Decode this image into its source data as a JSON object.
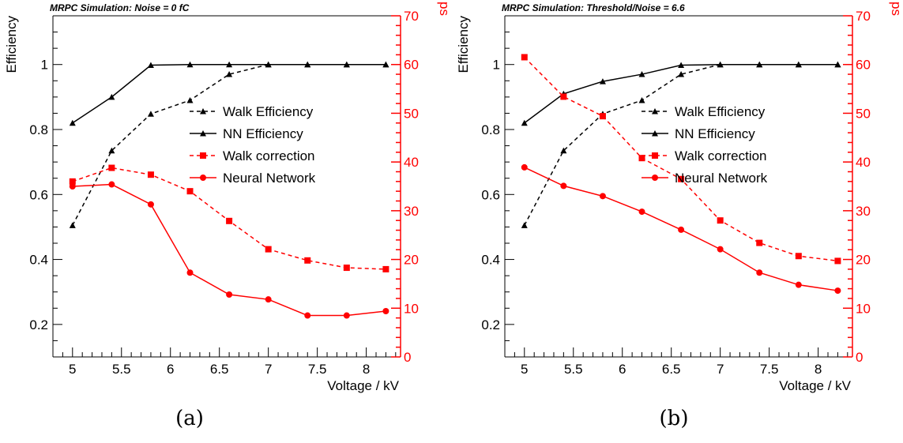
{
  "colors": {
    "walk": "#ff0000",
    "nn": "#000000",
    "axis_right": "#ff0000",
    "axis_left": "#000000"
  },
  "captions": [
    "(a)",
    "(b)"
  ],
  "chart_data": [
    {
      "type": "line",
      "title": "MRPC Simulation: Noise = 0 fC",
      "xlabel": "Voltage / kV",
      "ylabel": "Efficiency",
      "y2label": "MRPC Time Resolution / ps",
      "xlim": [
        4.8,
        8.35
      ],
      "ylim": [
        0.1,
        1.15
      ],
      "y2lim": [
        0,
        70
      ],
      "xticks": [
        "5",
        "5.5",
        "6",
        "6.5",
        "7",
        "7.5",
        "8"
      ],
      "yticks": [
        "0.2",
        "0.4",
        "0.6",
        "0.8",
        "1"
      ],
      "y2ticks": [
        "0",
        "10",
        "20",
        "30",
        "40",
        "50",
        "60",
        "70"
      ],
      "legend_position": "center-right",
      "x": [
        5.0,
        5.4,
        5.8,
        6.2,
        6.6,
        7.0,
        7.4,
        7.8,
        8.2
      ],
      "series": [
        {
          "name": "Walk Efficiency",
          "axis": "left",
          "color": "#000000",
          "dash": true,
          "marker": "triangle",
          "values": [
            0.505,
            0.735,
            0.848,
            0.89,
            0.97,
            1.0,
            1.0,
            1.0,
            1.0
          ]
        },
        {
          "name": "NN Efficiency",
          "axis": "left",
          "color": "#000000",
          "dash": false,
          "marker": "triangle",
          "values": [
            0.82,
            0.9,
            0.998,
            1.0,
            1.0,
            1.0,
            1.0,
            1.0,
            1.0
          ]
        },
        {
          "name": "Walk correction",
          "axis": "right",
          "color": "#ff0000",
          "dash": true,
          "marker": "square",
          "values": [
            36.0,
            38.8,
            37.4,
            34.0,
            27.9,
            22.1,
            19.8,
            18.3,
            18.0
          ]
        },
        {
          "name": "Neural Network",
          "axis": "right",
          "color": "#ff0000",
          "dash": false,
          "marker": "circle",
          "values": [
            35.0,
            35.4,
            31.3,
            17.3,
            12.8,
            11.8,
            8.5,
            8.5,
            9.4
          ]
        }
      ]
    },
    {
      "type": "line",
      "title": "MRPC Simulation: Threshold/Noise = 6.6",
      "xlabel": "Voltage / kV",
      "ylabel": "Efficiency",
      "y2label": "MRPC Time Resolution / ps",
      "xlim": [
        4.8,
        8.35
      ],
      "ylim": [
        0.1,
        1.15
      ],
      "y2lim": [
        0,
        70
      ],
      "xticks": [
        "5",
        "5.5",
        "6",
        "6.5",
        "7",
        "7.5",
        "8"
      ],
      "yticks": [
        "0.2",
        "0.4",
        "0.6",
        "0.8",
        "1"
      ],
      "y2ticks": [
        "0",
        "10",
        "20",
        "30",
        "40",
        "50",
        "60",
        "70"
      ],
      "legend_position": "center-right",
      "x": [
        5.0,
        5.4,
        5.8,
        6.2,
        6.6,
        7.0,
        7.4,
        7.8,
        8.2
      ],
      "series": [
        {
          "name": "Walk Efficiency",
          "axis": "left",
          "color": "#000000",
          "dash": true,
          "marker": "triangle",
          "values": [
            0.505,
            0.735,
            0.848,
            0.89,
            0.97,
            1.0,
            1.0,
            1.0,
            1.0
          ]
        },
        {
          "name": "NN Efficiency",
          "axis": "left",
          "color": "#000000",
          "dash": false,
          "marker": "triangle",
          "values": [
            0.82,
            0.91,
            0.948,
            0.97,
            0.998,
            1.0,
            1.0,
            1.0,
            1.0
          ]
        },
        {
          "name": "Walk correction",
          "axis": "right",
          "color": "#ff0000",
          "dash": true,
          "marker": "square",
          "values": [
            61.5,
            53.4,
            49.4,
            40.8,
            36.5,
            28.0,
            23.4,
            20.7,
            19.7
          ]
        },
        {
          "name": "Neural Network",
          "axis": "right",
          "color": "#ff0000",
          "dash": false,
          "marker": "circle",
          "values": [
            38.9,
            35.1,
            33.0,
            29.8,
            26.1,
            22.1,
            17.3,
            14.8,
            13.6
          ]
        }
      ]
    }
  ]
}
